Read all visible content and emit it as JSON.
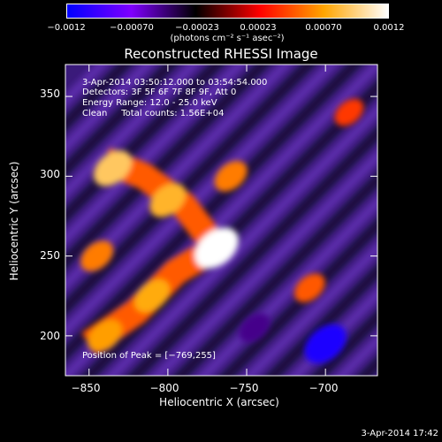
{
  "chart_data": {
    "type": "heatmap",
    "title": "Reconstructed RHESSI Image",
    "xlabel": "Heliocentric X (arcsec)",
    "ylabel": "Heliocentric Y (arcsec)",
    "xlim": [
      -865,
      -667
    ],
    "ylim": [
      175,
      370
    ],
    "x_ticks": [
      -850,
      -800,
      -750,
      -700
    ],
    "y_ticks": [
      200,
      250,
      300,
      350
    ],
    "x_tick_labels": [
      "−850",
      "−800",
      "−750",
      "−700"
    ],
    "y_tick_labels": [
      "200",
      "250",
      "300",
      "350"
    ],
    "colorbar": {
      "range": [
        -0.0012,
        0.0012
      ],
      "ticks": [
        -0.0012,
        -0.0007,
        -0.00023,
        0.00023,
        0.0007,
        0.0012
      ],
      "tick_labels": [
        "−0.0012",
        "−0.00070",
        "−0.00023",
        "0.00023",
        "0.00070",
        "0.0012"
      ],
      "units": "(photons cm⁻² s⁻¹ asec⁻²)",
      "colormap": [
        "#0000ff",
        "#7f00ff",
        "#000000",
        "#ff0000",
        "#ffa500",
        "#ffffff"
      ]
    },
    "sources": [
      {
        "x": -769,
        "y": 255,
        "value": 0.0012
      },
      {
        "x": -835,
        "y": 305,
        "value": 0.0009
      },
      {
        "x": -800,
        "y": 285,
        "value": 0.0008
      },
      {
        "x": -760,
        "y": 300,
        "value": 0.0006
      },
      {
        "x": -810,
        "y": 225,
        "value": 0.00075
      },
      {
        "x": -840,
        "y": 200,
        "value": 0.0007
      },
      {
        "x": -845,
        "y": 250,
        "value": 0.0006
      },
      {
        "x": -700,
        "y": 195,
        "value": -0.0011
      },
      {
        "x": -745,
        "y": 205,
        "value": -0.0005
      },
      {
        "x": -710,
        "y": 230,
        "value": 0.0005
      },
      {
        "x": -685,
        "y": 340,
        "value": 0.0004
      }
    ],
    "annotations": {
      "line1": "3-Apr-2014 03:50:12.000 to 03:54:54.000",
      "line2": "Detectors: 3F 5F 6F 7F 8F 9F, Att 0",
      "line3": "Energy Range: 12.0 - 25.0 keV",
      "line4": "Clean     Total counts: 1.56E+04",
      "peak": "Position of Peak = [−769,255]"
    },
    "grid": false
  },
  "footer": {
    "timestamp": "3-Apr-2014 17:42"
  }
}
